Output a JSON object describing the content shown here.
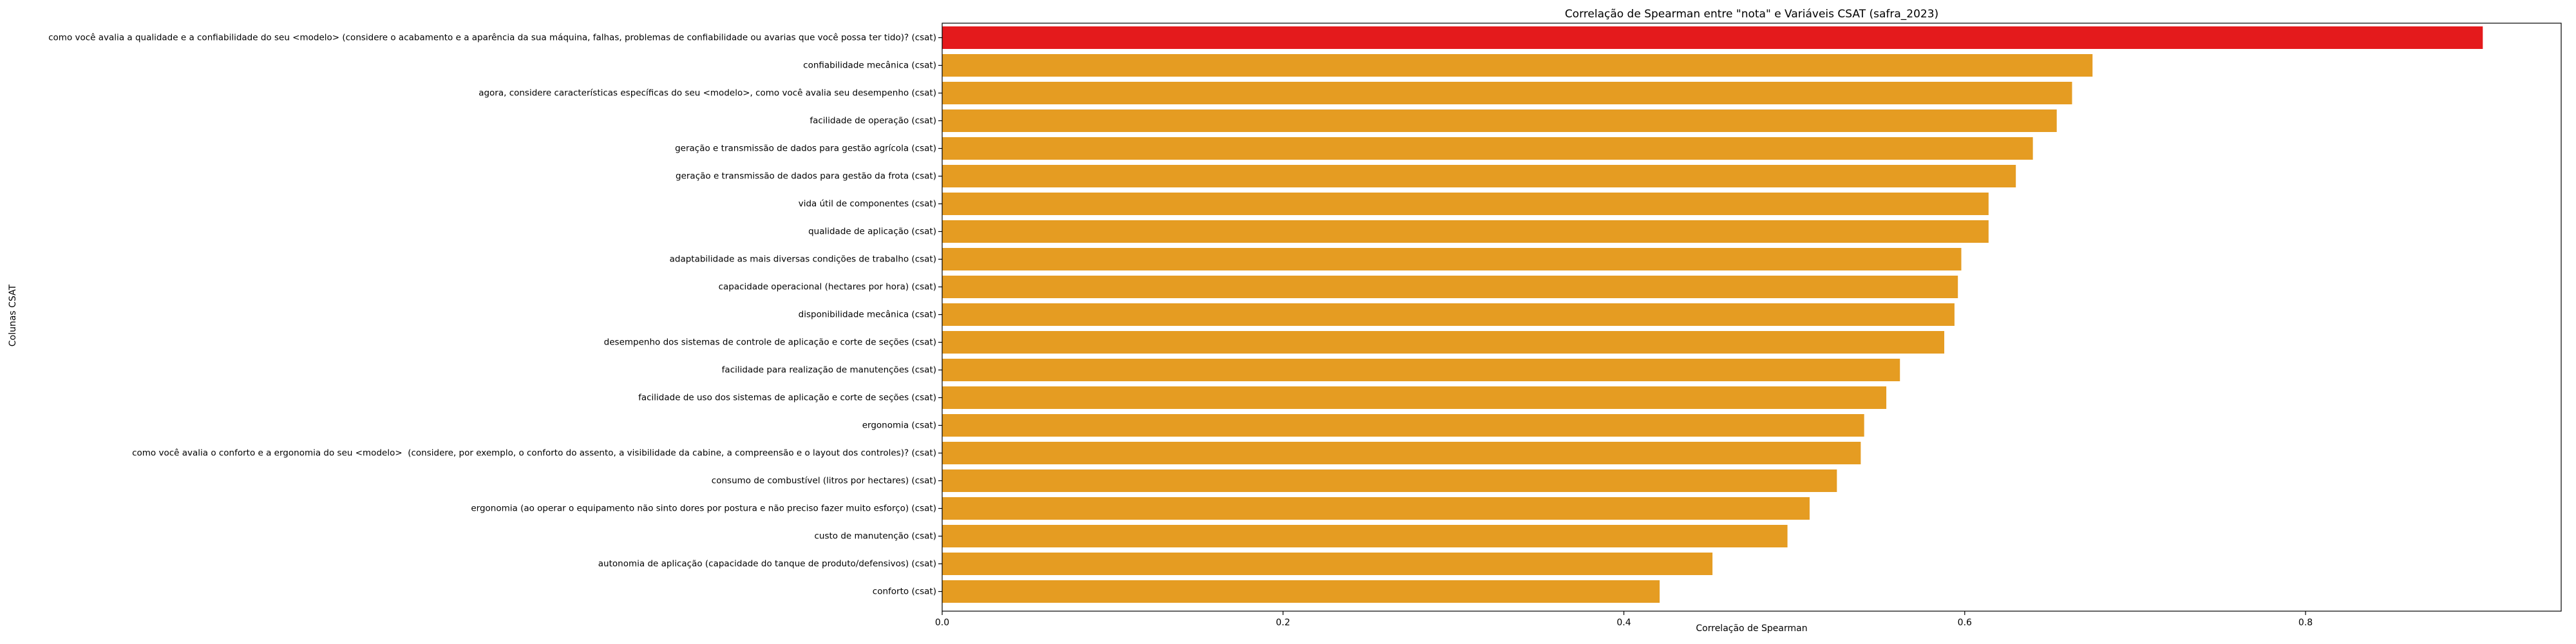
{
  "chart_data": {
    "type": "bar",
    "orientation": "horizontal",
    "title": "Correlação de Spearman entre \"nota\" e Variáveis CSAT (safra_2023)",
    "xlabel": "Correlação de Spearman",
    "ylabel": "Colunas CSAT",
    "xlim": [
      0,
      0.95
    ],
    "xticks": [
      0.0,
      0.2,
      0.4,
      0.6,
      0.8
    ],
    "xtick_labels": [
      "0.0",
      "0.2",
      "0.4",
      "0.6",
      "0.8"
    ],
    "grid": false,
    "colors": {
      "highlight": "#e41a1c",
      "default": "#e59c22"
    },
    "categories": [
      "como você avalia a qualidade e a confiabilidade do seu <modelo> (considere o acabamento e a aparência da sua máquina, falhas, problemas de confiabilidade ou avarias que você possa ter tido)? (csat)",
      "confiabilidade mecânica (csat)",
      "agora, considere características específicas do seu <modelo>, como você avalia seu desempenho (csat)",
      "facilidade de operação (csat)",
      "geração e transmissão de dados para gestão agrícola (csat)",
      "geração e transmissão de dados para gestão da frota (csat)",
      "vida útil de componentes (csat)",
      "qualidade de aplicação (csat)",
      "adaptabilidade as mais diversas condições de trabalho (csat)",
      "capacidade operacional (hectares por hora) (csat)",
      "disponibilidade mecânica (csat)",
      "desempenho dos sistemas de controle de aplicação e corte de seções (csat)",
      "facilidade para realização de manutenções (csat)",
      "facilidade de uso dos sistemas de aplicação e corte de seções (csat)",
      "ergonomia (csat)",
      "como você avalia o conforto e a ergonomia do seu <modelo>  (considere, por exemplo, o conforto do assento, a visibilidade da cabine, a compreensão e o layout dos controles)? (csat)",
      "consumo de combustível (litros por hectares) (csat)",
      "ergonomia (ao operar o equipamento não sinto dores por postura e não preciso fazer muito esforço) (csat)",
      "custo de manutenção (csat)",
      "autonomia de aplicação (capacidade do tanque de produto/defensivos) (csat)",
      "conforto (csat)"
    ],
    "values": [
      0.904,
      0.675,
      0.663,
      0.654,
      0.64,
      0.63,
      0.614,
      0.614,
      0.598,
      0.596,
      0.594,
      0.588,
      0.562,
      0.554,
      0.541,
      0.539,
      0.525,
      0.509,
      0.496,
      0.452,
      0.421
    ],
    "highlight_index": 0
  }
}
